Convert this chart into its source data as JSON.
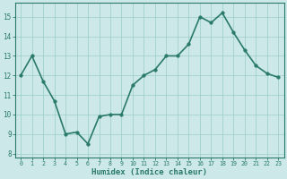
{
  "x": [
    0,
    1,
    2,
    3,
    4,
    5,
    6,
    7,
    8,
    9,
    10,
    11,
    12,
    13,
    14,
    15,
    16,
    17,
    18,
    19,
    20,
    21,
    22,
    23
  ],
  "y": [
    12.0,
    13.0,
    11.7,
    10.7,
    9.0,
    9.1,
    8.5,
    9.9,
    10.0,
    10.0,
    11.5,
    12.0,
    12.3,
    13.0,
    13.0,
    13.6,
    15.0,
    14.7,
    15.2,
    14.2,
    13.3,
    12.5,
    12.1,
    11.9
  ],
  "xlabel": "Humidex (Indice chaleur)",
  "ylim": [
    7.8,
    15.7
  ],
  "xlim": [
    -0.5,
    23.5
  ],
  "yticks": [
    8,
    9,
    10,
    11,
    12,
    13,
    14,
    15
  ],
  "xticks": [
    0,
    1,
    2,
    3,
    4,
    5,
    6,
    7,
    8,
    9,
    10,
    11,
    12,
    13,
    14,
    15,
    16,
    17,
    18,
    19,
    20,
    21,
    22,
    23
  ],
  "line_color": "#2a7a6a",
  "marker_color": "#2a7a6a",
  "bg_color": "#cce8e8",
  "grid_color": "#99cccc",
  "xlabel_color": "#2a7a6a",
  "tick_color": "#2a7a6a",
  "marker_size": 2.5,
  "line_width": 1.2,
  "xtick_fontsize": 4.8,
  "ytick_fontsize": 5.5,
  "xlabel_fontsize": 6.5
}
